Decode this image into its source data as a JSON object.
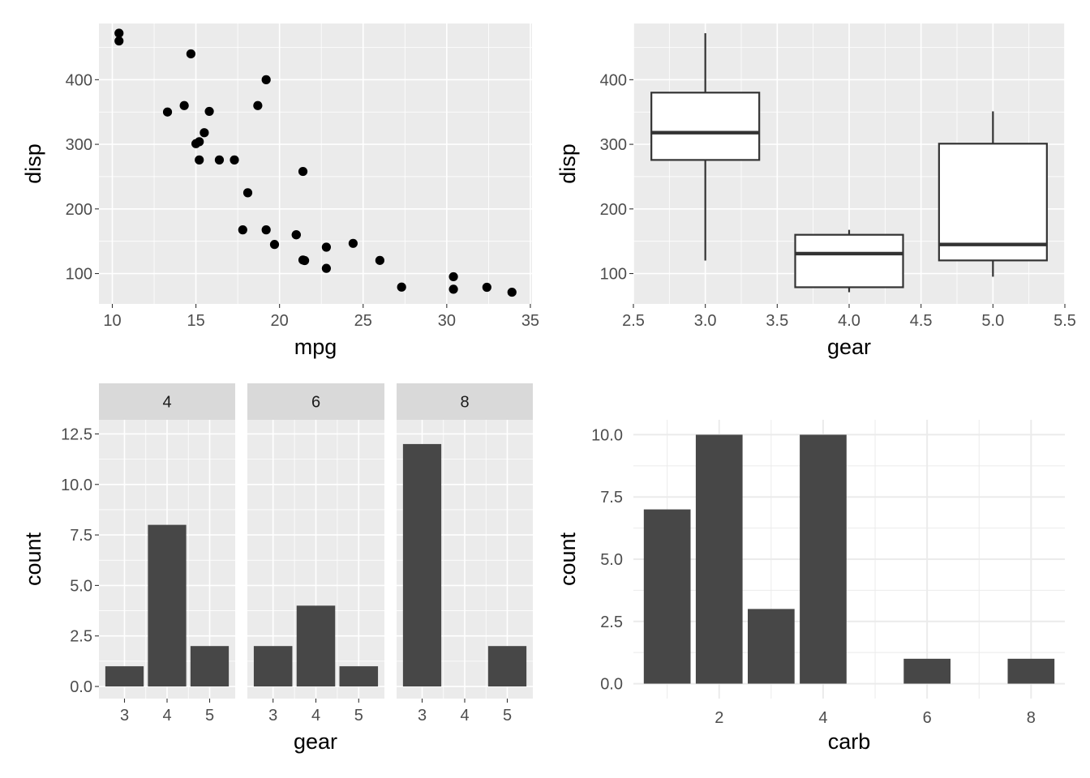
{
  "chart_data": [
    {
      "type": "scatter",
      "xlabel": "mpg",
      "ylabel": "disp",
      "xlim": [
        9.2,
        35.1
      ],
      "ylim": [
        53,
        487
      ],
      "x_ticks": [
        "10",
        "15",
        "20",
        "25",
        "30",
        "35"
      ],
      "y_ticks": [
        "100",
        "200",
        "300",
        "400"
      ],
      "x_tick_values": [
        10,
        15,
        20,
        25,
        30,
        35
      ],
      "y_tick_values": [
        100,
        200,
        300,
        400
      ],
      "points": [
        [
          21.0,
          160
        ],
        [
          21.0,
          160
        ],
        [
          22.8,
          108
        ],
        [
          21.4,
          258
        ],
        [
          18.7,
          360
        ],
        [
          18.1,
          225
        ],
        [
          14.3,
          360
        ],
        [
          24.4,
          146.7
        ],
        [
          22.8,
          140.8
        ],
        [
          19.2,
          167.6
        ],
        [
          17.8,
          167.6
        ],
        [
          16.4,
          275.8
        ],
        [
          17.3,
          275.8
        ],
        [
          15.2,
          275.8
        ],
        [
          10.4,
          472
        ],
        [
          10.4,
          460
        ],
        [
          14.7,
          440
        ],
        [
          32.4,
          78.7
        ],
        [
          30.4,
          75.7
        ],
        [
          33.9,
          71.1
        ],
        [
          21.5,
          120.1
        ],
        [
          15.5,
          318
        ],
        [
          15.2,
          304
        ],
        [
          13.3,
          350
        ],
        [
          19.2,
          400
        ],
        [
          27.3,
          79
        ],
        [
          26.0,
          120.3
        ],
        [
          30.4,
          95.1
        ],
        [
          15.8,
          351
        ],
        [
          19.7,
          145
        ],
        [
          15.0,
          301
        ],
        [
          21.4,
          121
        ]
      ],
      "grid": true
    },
    {
      "type": "box",
      "xlabel": "gear",
      "ylabel": "disp",
      "xlim": [
        2.5,
        5.5
      ],
      "ylim": [
        53,
        487
      ],
      "x_ticks": [
        "2.5",
        "3.0",
        "3.5",
        "4.0",
        "4.5",
        "5.0",
        "5.5"
      ],
      "y_ticks": [
        "100",
        "200",
        "300",
        "400"
      ],
      "x_tick_values": [
        2.5,
        3.0,
        3.5,
        4.0,
        4.5,
        5.0,
        5.5
      ],
      "y_tick_values": [
        100,
        200,
        300,
        400
      ],
      "boxes": [
        {
          "x": 3,
          "min": 120.1,
          "q1": 275.8,
          "median": 318,
          "q3": 380,
          "max": 472
        },
        {
          "x": 4,
          "min": 71.1,
          "q1": 78.8,
          "median": 130.9,
          "q3": 160,
          "max": 167.6
        },
        {
          "x": 5,
          "min": 95.1,
          "q1": 120.3,
          "median": 145,
          "q3": 301,
          "max": 351
        }
      ],
      "grid": true
    },
    {
      "type": "bar",
      "facets": [
        "4",
        "6",
        "8"
      ],
      "facet_values": [
        [
          1,
          8,
          2
        ],
        [
          2,
          4,
          1
        ],
        [
          12,
          0,
          2
        ]
      ],
      "categories": [
        "3",
        "4",
        "5"
      ],
      "xlabel": "gear",
      "ylabel": "count",
      "ylim": [
        -0.6,
        13.2
      ],
      "y_ticks": [
        "0.0",
        "2.5",
        "5.0",
        "7.5",
        "10.0",
        "12.5"
      ],
      "y_tick_values": [
        0,
        2.5,
        5,
        7.5,
        10,
        12.5
      ],
      "grid": true
    },
    {
      "type": "bar",
      "categories": [
        1,
        2,
        3,
        4,
        6,
        8
      ],
      "values": [
        7,
        10,
        3,
        10,
        1,
        1
      ],
      "xlabel": "carb",
      "ylabel": "count",
      "xlim": [
        0.35,
        8.65
      ],
      "ylim": [
        -0.6,
        10.6
      ],
      "x_ticks": [
        "2",
        "4",
        "6",
        "8"
      ],
      "x_tick_values": [
        2,
        4,
        6,
        8
      ],
      "y_ticks": [
        "0.0",
        "2.5",
        "5.0",
        "7.5",
        "10.0"
      ],
      "y_tick_values": [
        0,
        2.5,
        5,
        7.5,
        10
      ],
      "grid": true
    }
  ],
  "colors": {
    "panel_bg": "#ebebeb",
    "grid_major": "#ffffff",
    "strip_bg": "#d9d9d9",
    "bar_fill": "#474747",
    "point": "#000000",
    "box_line": "#333333",
    "box_fill": "#ffffff",
    "minimal_grid": "#ebebeb"
  }
}
